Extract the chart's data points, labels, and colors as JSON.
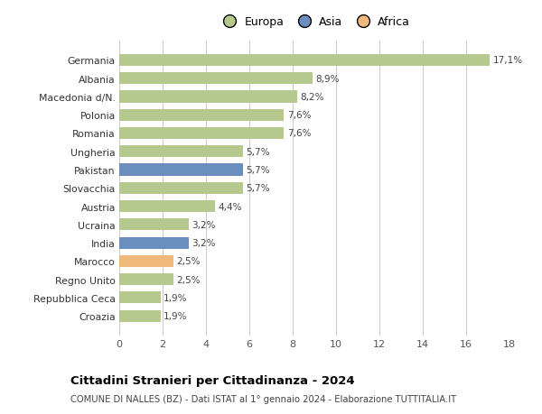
{
  "categories": [
    "Croazia",
    "Repubblica Ceca",
    "Regno Unito",
    "Marocco",
    "India",
    "Ucraina",
    "Austria",
    "Slovacchia",
    "Pakistan",
    "Ungheria",
    "Romania",
    "Polonia",
    "Macedonia d/N.",
    "Albania",
    "Germania"
  ],
  "values": [
    1.9,
    1.9,
    2.5,
    2.5,
    3.2,
    3.2,
    4.4,
    5.7,
    5.7,
    5.7,
    7.6,
    7.6,
    8.2,
    8.9,
    17.1
  ],
  "labels": [
    "1,9%",
    "1,9%",
    "2,5%",
    "2,5%",
    "3,2%",
    "3,2%",
    "4,4%",
    "5,7%",
    "5,7%",
    "5,7%",
    "7,6%",
    "7,6%",
    "8,2%",
    "8,9%",
    "17,1%"
  ],
  "continents": [
    "Europa",
    "Europa",
    "Europa",
    "Africa",
    "Asia",
    "Europa",
    "Europa",
    "Europa",
    "Asia",
    "Europa",
    "Europa",
    "Europa",
    "Europa",
    "Europa",
    "Europa"
  ],
  "colors": {
    "Europa": "#b5c98e",
    "Asia": "#6a8fbf",
    "Africa": "#f0b87a"
  },
  "title": "Cittadini Stranieri per Cittadinanza - 2024",
  "subtitle": "COMUNE DI NALLES (BZ) - Dati ISTAT al 1° gennaio 2024 - Elaborazione TUTTITALIA.IT",
  "xlim": [
    0,
    18
  ],
  "xticks": [
    0,
    2,
    4,
    6,
    8,
    10,
    12,
    14,
    16,
    18
  ],
  "background_color": "#ffffff",
  "grid_color": "#cccccc",
  "bar_height": 0.65
}
